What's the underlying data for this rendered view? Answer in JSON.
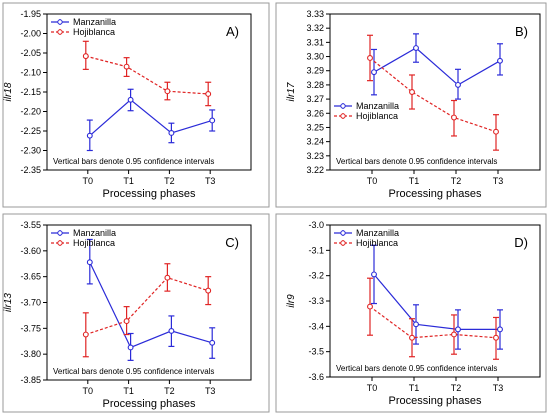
{
  "chart_data": [
    {
      "type": "line",
      "panel_label": "A)",
      "xlabel": "Processing phases",
      "ylabel": "ilr18",
      "categories": [
        "T0",
        "T1",
        "T2",
        "T3"
      ],
      "ylim": [
        -2.35,
        -1.95
      ],
      "yticks": [
        -1.95,
        -2.0,
        -2.05,
        -2.1,
        -2.15,
        -2.2,
        -2.25,
        -2.3,
        -2.35
      ],
      "grid": false,
      "legend_position": "top-left",
      "note": "Vertical bars denote 0.95 confidence intervals",
      "series": [
        {
          "name": "Manzanilla",
          "color": "#2b2bd8",
          "line_style": "solid",
          "marker": "circle",
          "values": [
            -2.262,
            -2.17,
            -2.255,
            -2.223
          ],
          "ci_lower": [
            -2.3,
            -2.198,
            -2.28,
            -2.25
          ],
          "ci_upper": [
            -2.222,
            -2.143,
            -2.23,
            -2.196
          ]
        },
        {
          "name": "Hojiblanca",
          "color": "#e02424",
          "line_style": "dashed",
          "marker": "circle",
          "values": [
            -2.058,
            -2.085,
            -2.148,
            -2.155
          ],
          "ci_lower": [
            -2.092,
            -2.11,
            -2.17,
            -2.185
          ],
          "ci_upper": [
            -2.02,
            -2.062,
            -2.125,
            -2.125
          ]
        }
      ]
    },
    {
      "type": "line",
      "panel_label": "B)",
      "xlabel": "Processing phases",
      "ylabel": "ilr17",
      "categories": [
        "T0",
        "T1",
        "T2",
        "T3"
      ],
      "ylim": [
        3.22,
        3.33
      ],
      "yticks": [
        3.33,
        3.32,
        3.31,
        3.3,
        3.29,
        3.28,
        3.27,
        3.26,
        3.25,
        3.24,
        3.23,
        3.22
      ],
      "grid": false,
      "legend_position": "center-left",
      "note": "Vertical bars denote 0.95 confidence intervals",
      "series": [
        {
          "name": "Manzanilla",
          "color": "#2b2bd8",
          "line_style": "solid",
          "marker": "circle",
          "values": [
            3.289,
            3.306,
            3.28,
            3.297
          ],
          "ci_lower": [
            3.273,
            3.296,
            3.27,
            3.287
          ],
          "ci_upper": [
            3.305,
            3.316,
            3.291,
            3.309
          ]
        },
        {
          "name": "Hojiblanca",
          "color": "#e02424",
          "line_style": "dashed",
          "marker": "circle",
          "values": [
            3.299,
            3.275,
            3.257,
            3.247
          ],
          "ci_lower": [
            3.283,
            3.263,
            3.244,
            3.234
          ],
          "ci_upper": [
            3.315,
            3.287,
            3.269,
            3.259
          ]
        }
      ]
    },
    {
      "type": "line",
      "panel_label": "C)",
      "xlabel": "Processing phases",
      "ylabel": "ilr13",
      "categories": [
        "T0",
        "T1",
        "T2",
        "T3"
      ],
      "ylim": [
        -3.85,
        -3.55
      ],
      "yticks": [
        -3.55,
        -3.6,
        -3.65,
        -3.7,
        -3.75,
        -3.8,
        -3.85
      ],
      "grid": false,
      "legend_position": "top-left",
      "note": "Vertical bars denote 0.95 confidence intervals",
      "series": [
        {
          "name": "Manzanilla",
          "color": "#2b2bd8",
          "line_style": "solid",
          "marker": "circle",
          "values": [
            -3.622,
            -3.787,
            -3.755,
            -3.778
          ],
          "ci_lower": [
            -3.664,
            -3.812,
            -3.785,
            -3.808
          ],
          "ci_upper": [
            -3.578,
            -3.76,
            -3.726,
            -3.749
          ]
        },
        {
          "name": "Hojiblanca",
          "color": "#e02424",
          "line_style": "dashed",
          "marker": "circle",
          "values": [
            -3.762,
            -3.736,
            -3.652,
            -3.677
          ],
          "ci_lower": [
            -3.805,
            -3.762,
            -3.678,
            -3.704
          ],
          "ci_upper": [
            -3.72,
            -3.708,
            -3.625,
            -3.65
          ]
        }
      ]
    },
    {
      "type": "line",
      "panel_label": "D)",
      "xlabel": "Processing phases",
      "ylabel": "ilr9",
      "categories": [
        "T0",
        "T1",
        "T2",
        "T3"
      ],
      "ylim": [
        -3.6,
        -3.0
      ],
      "yticks": [
        -3.0,
        -3.1,
        -3.2,
        -3.3,
        -3.4,
        -3.5,
        -3.6
      ],
      "grid": false,
      "legend_position": "top-left",
      "note": "Vertical bars denote 0.95 confidence intervals",
      "series": [
        {
          "name": "Manzanilla",
          "color": "#2b2bd8",
          "line_style": "solid",
          "marker": "circle",
          "values": [
            -3.195,
            -3.392,
            -3.412,
            -3.412
          ],
          "ci_lower": [
            -3.31,
            -3.47,
            -3.49,
            -3.49
          ],
          "ci_upper": [
            -3.08,
            -3.315,
            -3.335,
            -3.335
          ]
        },
        {
          "name": "Hojiblanca",
          "color": "#e02424",
          "line_style": "dashed",
          "marker": "circle",
          "values": [
            -3.322,
            -3.445,
            -3.432,
            -3.445
          ],
          "ci_lower": [
            -3.435,
            -3.52,
            -3.51,
            -3.53
          ],
          "ci_upper": [
            -3.21,
            -3.37,
            -3.355,
            -3.365
          ]
        }
      ]
    }
  ]
}
